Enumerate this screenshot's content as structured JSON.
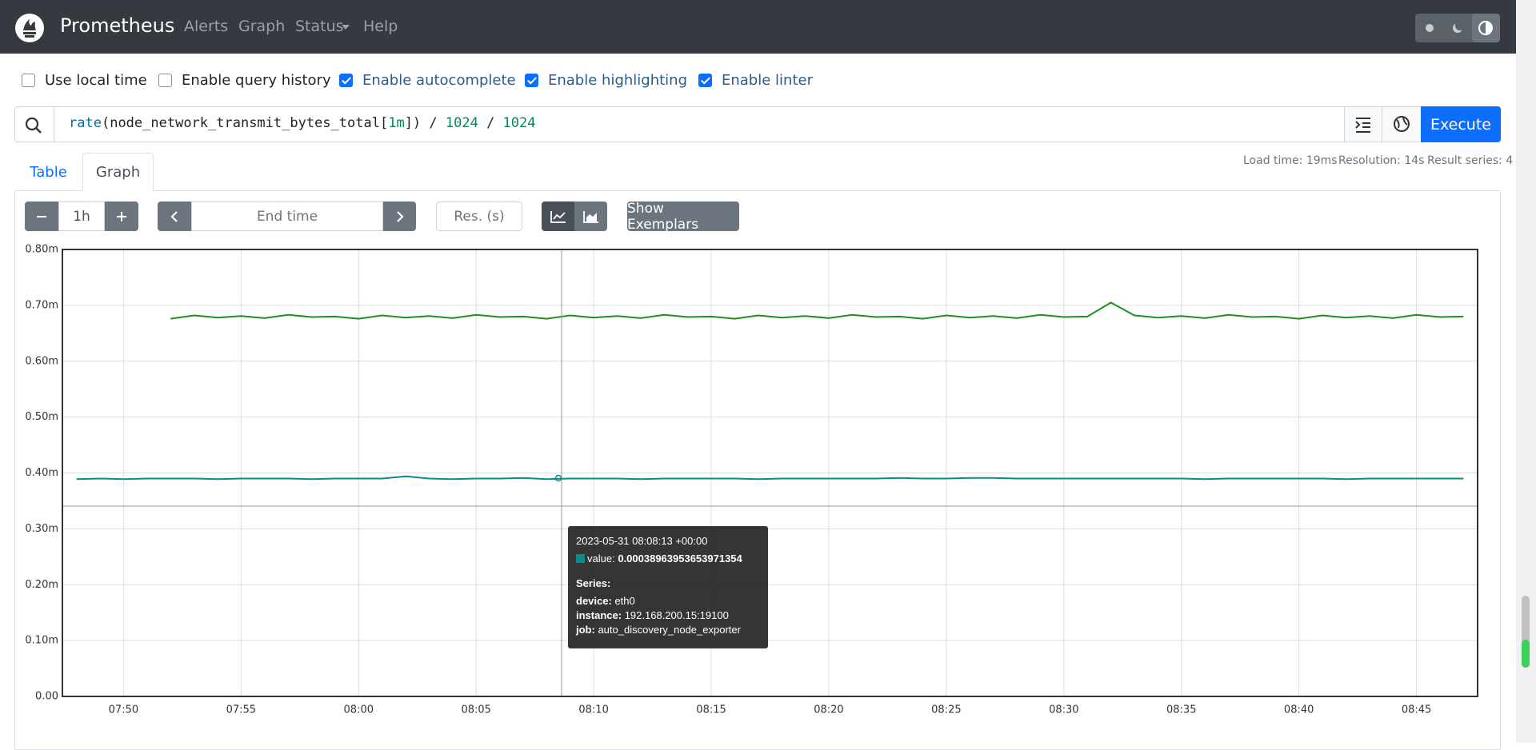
{
  "navbar": {
    "brand": "Prometheus",
    "links": [
      "Alerts",
      "Graph",
      "Status",
      "Help"
    ]
  },
  "options": [
    {
      "label": "Use local time",
      "checked": false
    },
    {
      "label": "Enable query history",
      "checked": false
    },
    {
      "label": "Enable autocomplete",
      "checked": true
    },
    {
      "label": "Enable highlighting",
      "checked": true
    },
    {
      "label": "Enable linter",
      "checked": true
    }
  ],
  "query": {
    "tokens": [
      "rate",
      "(",
      "node_network_transmit_bytes_total[",
      "1m",
      "]) / ",
      "1024",
      " / ",
      "1024"
    ],
    "execute": "Execute"
  },
  "tabs": [
    "Table",
    "Graph"
  ],
  "stats": [
    "Load time: 19ms",
    "Resolution: 14s",
    "Result series: 4"
  ],
  "controls": {
    "range": "1h",
    "end_time": "End time",
    "resolution": "Res. (s)",
    "exemplars": "Show Exemplars"
  },
  "chart_data": {
    "type": "line",
    "x": [
      468,
      469,
      470,
      471,
      472,
      473,
      474,
      475,
      476,
      477,
      478,
      479,
      480,
      481,
      482,
      483,
      484,
      485,
      486,
      487,
      488,
      489,
      490,
      491,
      492,
      493,
      494,
      495,
      496,
      497,
      498,
      499,
      500,
      501,
      502,
      503,
      504,
      505,
      506,
      507,
      508,
      509,
      510,
      511,
      512,
      513,
      514,
      515,
      516,
      517,
      518,
      519,
      520,
      521,
      522,
      523,
      524,
      525,
      526,
      527
    ],
    "xlim": [
      467.4,
      527.6
    ],
    "xticks": [
      {
        "value": 470,
        "label": "07:50"
      },
      {
        "value": 475,
        "label": "07:55"
      },
      {
        "value": 480,
        "label": "08:00"
      },
      {
        "value": 485,
        "label": "08:05"
      },
      {
        "value": 490,
        "label": "08:10"
      },
      {
        "value": 495,
        "label": "08:15"
      },
      {
        "value": 500,
        "label": "08:20"
      },
      {
        "value": 505,
        "label": "08:25"
      },
      {
        "value": 510,
        "label": "08:30"
      },
      {
        "value": 515,
        "label": "08:35"
      },
      {
        "value": 520,
        "label": "08:40"
      },
      {
        "value": 525,
        "label": "08:45"
      }
    ],
    "ylim": [
      0,
      0.8
    ],
    "yticks": [
      {
        "value": 0,
        "label": "0.00"
      },
      {
        "value": 0.1,
        "label": "0.10m"
      },
      {
        "value": 0.2,
        "label": "0.20m"
      },
      {
        "value": 0.3,
        "label": "0.30m"
      },
      {
        "value": 0.4,
        "label": "0.40m"
      },
      {
        "value": 0.5,
        "label": "0.50m"
      },
      {
        "value": 0.6,
        "label": "0.60m"
      },
      {
        "value": 0.7,
        "label": "0.70m"
      },
      {
        "value": 0.8,
        "label": "0.80m"
      }
    ],
    "grid": true,
    "series": [
      {
        "color": "#a00000",
        "values": [
          0,
          0,
          0,
          0,
          null,
          null,
          null,
          null,
          null,
          null,
          null,
          null,
          null,
          null,
          null,
          null,
          null,
          null,
          null,
          null,
          null,
          null,
          null,
          null,
          null,
          null,
          null,
          null,
          null,
          null,
          null,
          null,
          null,
          null,
          null,
          null,
          null,
          null,
          null,
          null,
          null,
          null,
          null,
          null,
          null,
          null,
          null,
          null,
          null,
          null,
          null,
          null,
          null,
          null,
          null,
          null,
          null,
          null,
          null,
          null
        ]
      },
      {
        "color": "#800080",
        "values": [
          null,
          null,
          null,
          0,
          0,
          0,
          0,
          0,
          0,
          0,
          0,
          0,
          0,
          0,
          0,
          0,
          0,
          0,
          0,
          0,
          0,
          0,
          0,
          0,
          0,
          0,
          0,
          0,
          0,
          0,
          0,
          0,
          0,
          0,
          0,
          0,
          0,
          0,
          0,
          0,
          0,
          0,
          0,
          0,
          0,
          0,
          0,
          0,
          0,
          0,
          0,
          0,
          0,
          0,
          0,
          0,
          0,
          0,
          0,
          0
        ]
      },
      {
        "color": "#1f8f1f",
        "values": [
          null,
          null,
          null,
          null,
          0.676,
          0.682,
          0.678,
          0.681,
          0.677,
          0.683,
          0.679,
          0.68,
          0.676,
          0.682,
          0.678,
          0.681,
          0.677,
          0.683,
          0.679,
          0.68,
          0.676,
          0.682,
          0.678,
          0.681,
          0.677,
          0.683,
          0.679,
          0.68,
          0.676,
          0.682,
          0.678,
          0.681,
          0.677,
          0.683,
          0.679,
          0.68,
          0.676,
          0.682,
          0.678,
          0.681,
          0.677,
          0.683,
          0.679,
          0.68,
          0.705,
          0.682,
          0.678,
          0.681,
          0.677,
          0.683,
          0.679,
          0.68,
          0.676,
          0.682,
          0.678,
          0.681,
          0.677,
          0.683,
          0.679,
          0.68
        ]
      },
      {
        "color": "#0e8a8a",
        "values": [
          0.389,
          0.39,
          0.389,
          0.39,
          0.39,
          0.39,
          0.389,
          0.39,
          0.39,
          0.39,
          0.389,
          0.39,
          0.39,
          0.39,
          0.394,
          0.39,
          0.389,
          0.39,
          0.39,
          0.391,
          0.389,
          0.39,
          0.39,
          0.39,
          0.389,
          0.39,
          0.39,
          0.39,
          0.39,
          0.389,
          0.39,
          0.39,
          0.39,
          0.39,
          0.39,
          0.391,
          0.39,
          0.39,
          0.391,
          0.391,
          0.39,
          0.39,
          0.39,
          0.39,
          0.39,
          0.39,
          0.39,
          0.39,
          0.389,
          0.39,
          0.39,
          0.39,
          0.39,
          0.39,
          0.389,
          0.39,
          0.39,
          0.39,
          0.39,
          0.39
        ]
      }
    ]
  },
  "tooltip": {
    "time": "2023-05-31 08:08:13 +00:00",
    "value_key": "value:",
    "value": "0.00038963953653971354",
    "series_title": "Series:",
    "labels": [
      {
        "key": "device:",
        "value": "eth0"
      },
      {
        "key": "instance:",
        "value": "192.168.200.15:19100"
      },
      {
        "key": "job:",
        "value": "auto_discovery_node_exporter"
      }
    ]
  }
}
